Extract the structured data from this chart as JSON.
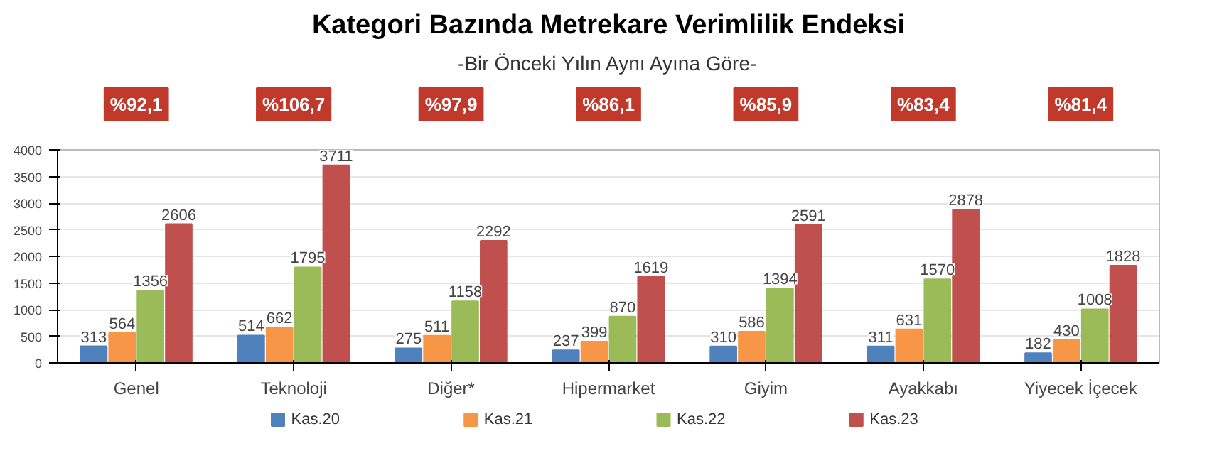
{
  "chart_data": {
    "type": "bar",
    "title": "Kategori Bazında Metrekare Verimlilik Endeksi",
    "subtitle": "-Bir Önceki Yılın Aynı Ayına Göre-",
    "categories": [
      "Genel",
      "Teknoloji",
      "Diğer*",
      "Hipermarket",
      "Giyim",
      "Ayakkabı",
      "Yiyecek İçecek"
    ],
    "series": [
      {
        "name": "Kas.20",
        "color": "#4f81bd",
        "values": [
          313,
          514,
          275,
          237,
          310,
          311,
          182
        ]
      },
      {
        "name": "Kas.21",
        "color": "#f79646",
        "values": [
          564,
          662,
          511,
          399,
          586,
          631,
          430
        ]
      },
      {
        "name": "Kas.22",
        "color": "#9bbb59",
        "values": [
          1356,
          1795,
          1158,
          870,
          1394,
          1570,
          1008
        ]
      },
      {
        "name": "Kas.23",
        "color": "#c0504d",
        "values": [
          2606,
          3711,
          2292,
          1619,
          2591,
          2878,
          1828
        ]
      }
    ],
    "annotations": [
      "%92,1",
      "%106,7",
      "%97,9",
      "%86,1",
      "%85,9",
      "%83,4",
      "%81,4"
    ],
    "ylim": [
      0,
      4000
    ],
    "yticks": [
      0,
      500,
      1000,
      1500,
      2000,
      2500,
      3000,
      3500,
      4000
    ],
    "grid": "y",
    "legend": "bottom",
    "data_labels": true
  }
}
